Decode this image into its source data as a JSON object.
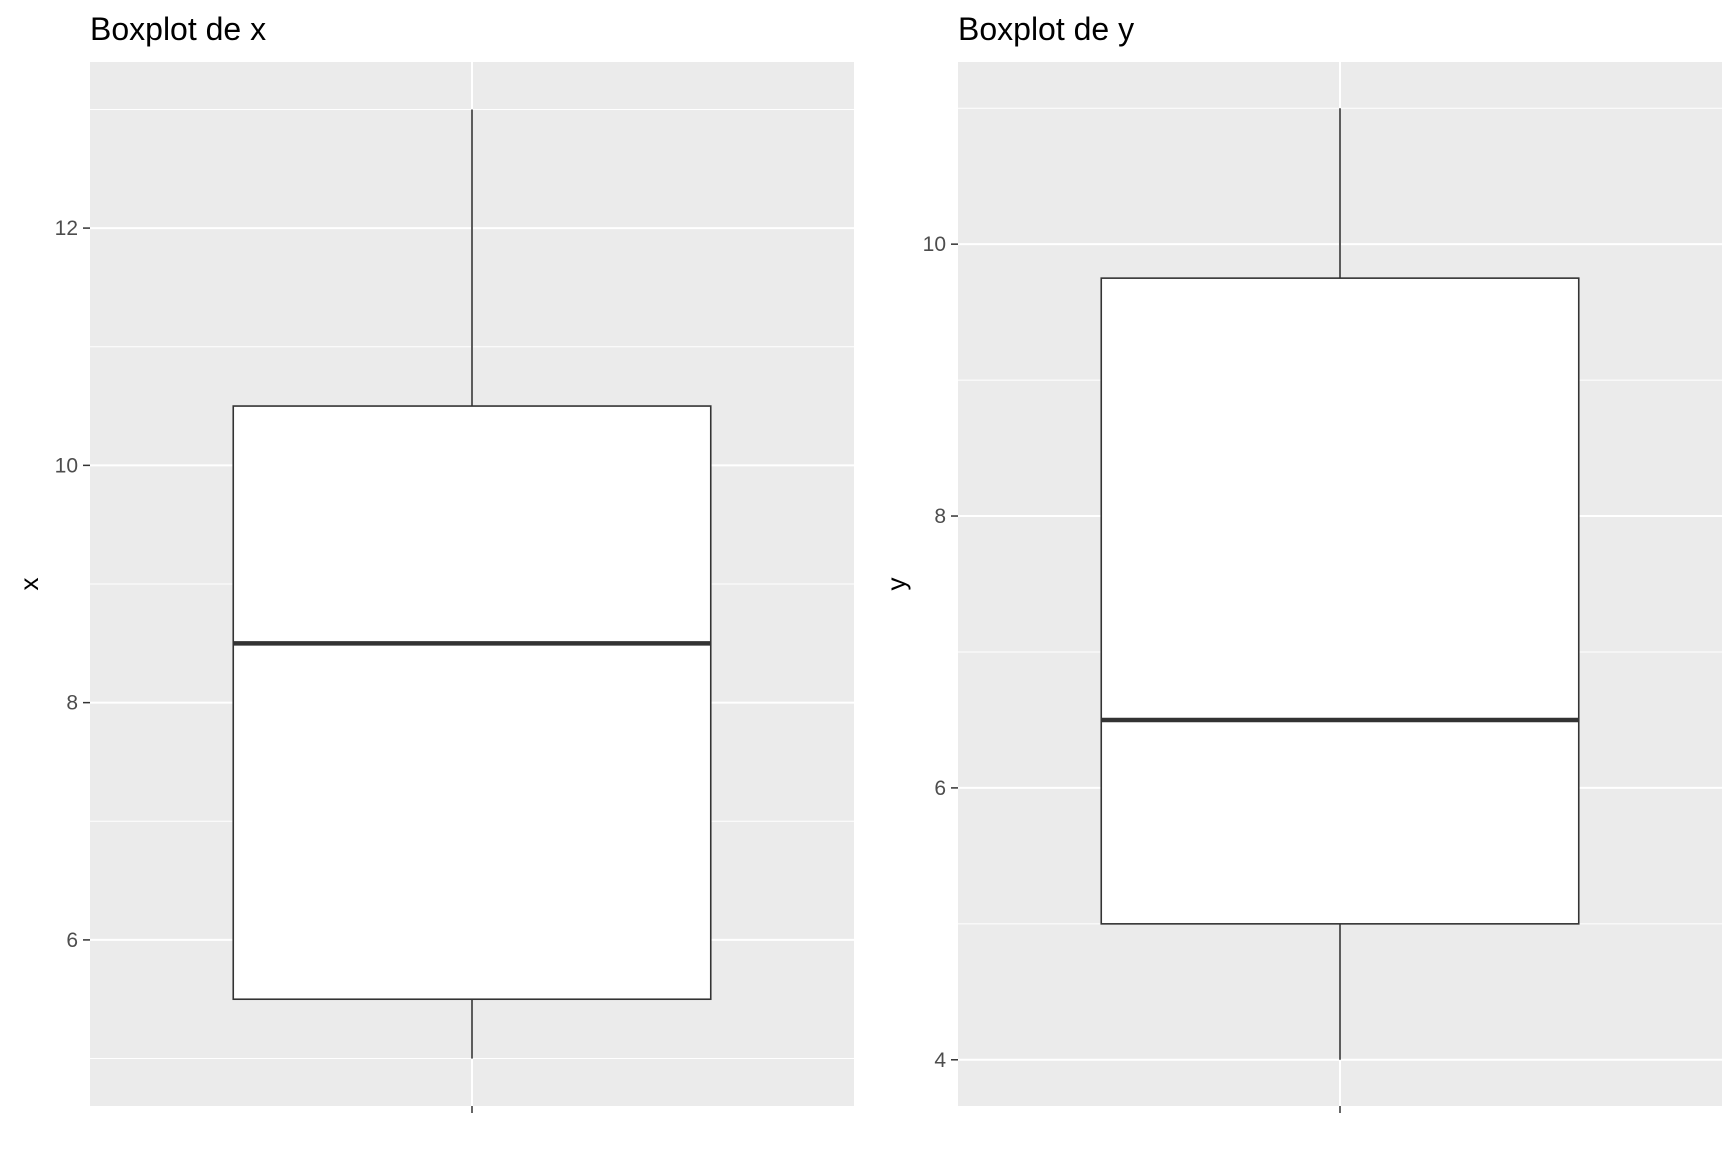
{
  "chart_data": [
    {
      "type": "boxplot",
      "title": "Boxplot de x",
      "xlabel": "",
      "ylabel": "x",
      "ylim": [
        4.6,
        13.4
      ],
      "yticks": [
        6,
        8,
        10,
        12
      ],
      "box": {
        "min": 5,
        "q1": 5.5,
        "median": 8.5,
        "q3": 10.5,
        "max": 13
      },
      "grid": true,
      "colors": {
        "panel": "#ebebeb",
        "grid": "#ffffff",
        "box_fill": "#ffffff",
        "box_line": "#333333"
      }
    },
    {
      "type": "boxplot",
      "title": "Boxplot de y",
      "xlabel": "",
      "ylabel": "y",
      "ylim": [
        3.66,
        11.34
      ],
      "yticks": [
        4,
        6,
        8,
        10
      ],
      "box": {
        "min": 4,
        "q1": 5,
        "median": 6.5,
        "q3": 9.75,
        "max": 11
      },
      "grid": true,
      "colors": {
        "panel": "#ebebeb",
        "grid": "#ffffff",
        "box_fill": "#ffffff",
        "box_line": "#333333"
      }
    }
  ]
}
